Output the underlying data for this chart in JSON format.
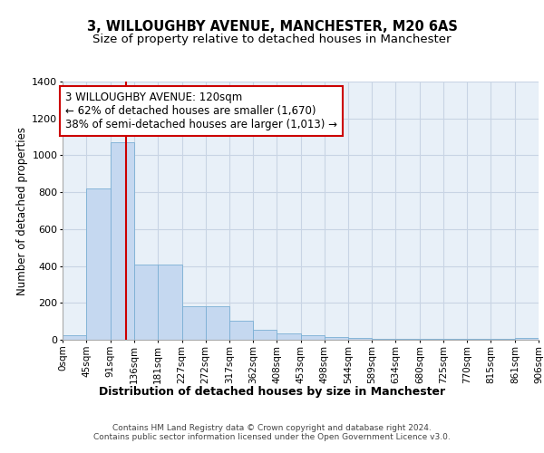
{
  "title1": "3, WILLOUGHBY AVENUE, MANCHESTER, M20 6AS",
  "title2": "Size of property relative to detached houses in Manchester",
  "xlabel": "Distribution of detached houses by size in Manchester",
  "ylabel": "Number of detached properties",
  "bar_color": "#c5d8f0",
  "bar_edge_color": "#7aafd4",
  "background_color": "#e8f0f8",
  "grid_color": "#c8d4e4",
  "bin_edges": [
    0,
    45,
    91,
    136,
    181,
    227,
    272,
    317,
    362,
    408,
    453,
    498,
    544,
    589,
    634,
    680,
    725,
    770,
    815,
    861,
    906
  ],
  "bar_heights": [
    25,
    820,
    1070,
    410,
    410,
    180,
    180,
    105,
    55,
    35,
    25,
    15,
    8,
    5,
    5,
    5,
    5,
    5,
    5,
    8
  ],
  "property_size": 120,
  "red_line_color": "#cc0000",
  "annotation_line1": "3 WILLOUGHBY AVENUE: 120sqm",
  "annotation_line2": "← 62% of detached houses are smaller (1,670)",
  "annotation_line3": "38% of semi-detached houses are larger (1,013) →",
  "annotation_box_color": "#ffffff",
  "annotation_box_edge": "#cc0000",
  "ylim": [
    0,
    1400
  ],
  "yticks": [
    0,
    200,
    400,
    600,
    800,
    1000,
    1200,
    1400
  ],
  "tick_labels": [
    "0sqm",
    "45sqm",
    "91sqm",
    "136sqm",
    "181sqm",
    "227sqm",
    "272sqm",
    "317sqm",
    "362sqm",
    "408sqm",
    "453sqm",
    "498sqm",
    "544sqm",
    "589sqm",
    "634sqm",
    "680sqm",
    "725sqm",
    "770sqm",
    "815sqm",
    "861sqm",
    "906sqm"
  ],
  "footer_text": "Contains HM Land Registry data © Crown copyright and database right 2024.\nContains public sector information licensed under the Open Government Licence v3.0.",
  "title1_fontsize": 10.5,
  "title2_fontsize": 9.5,
  "xlabel_fontsize": 9,
  "ylabel_fontsize": 8.5,
  "tick_fontsize": 7.5,
  "footer_fontsize": 6.5,
  "annot_fontsize": 8.5
}
